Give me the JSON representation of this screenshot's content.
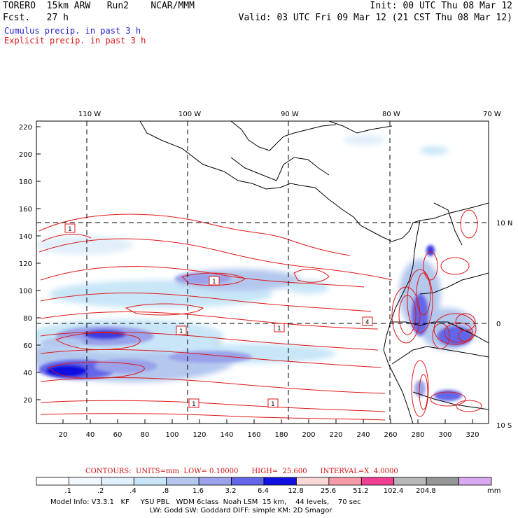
{
  "header": {
    "model": "TORERO  15km ARW   Run2    NCAR/MMM",
    "fcst": "Fcst.   27 h",
    "init": "Init: 00 UTC Thu 08 Mar 12",
    "valid": "Valid: 03 UTC Fri 09 Mar 12 (21 CST Thu 08 Mar 12)",
    "cumulus": "Cumulus precip. in past 3 h",
    "explicit": "Explicit precip. in past 3 h"
  },
  "axes": {
    "lon_labels": [
      "110 W",
      "100 W",
      "90 W",
      "80 W",
      "70 W"
    ],
    "lat_labels": [
      "10 N",
      "0",
      "10 S"
    ],
    "y_ticks": [
      "220",
      "200",
      "180",
      "160",
      "140",
      "120",
      "100",
      "80",
      "60",
      "40",
      "20"
    ],
    "x_ticks": [
      "20",
      "40",
      "60",
      "80",
      "100",
      "120",
      "140",
      "160",
      "180",
      "200",
      "220",
      "240",
      "260",
      "280",
      "300",
      "320"
    ]
  },
  "contour_labels": [
    "1",
    "1",
    "1",
    "1",
    "4",
    "1",
    "1"
  ],
  "contours_info": "CONTOURS:  UNITS=mm  LOW= 0.10000      HIGH=  25.600      INTERVAL=X  4.0000",
  "legend": {
    "labels": [
      ".1",
      ".2",
      ".4",
      ".8",
      "1.6",
      "3.2",
      "6.4",
      "12.8",
      "25.6",
      "51.2",
      "102.4",
      "204.8"
    ],
    "unit": "mm",
    "colors": [
      "#ffffff",
      "#f2f8ff",
      "#e2f0fb",
      "#c8e6f8",
      "#b4c8ee",
      "#9aa2ea",
      "#6466e8",
      "#1010e0",
      "#fbd8d8",
      "#f59aa8",
      "#f03e92",
      "#b8b8b8",
      "#969696",
      "#d8a8f0"
    ]
  },
  "model_info": {
    "line1": "Model Info: V3.3.1   KF     YSU PBL   WDM 6class  Noah LSM  15 km,    44 levels,    70 sec",
    "line2": "LW: Godd SW: Goddard DIFF: simple KM: 2D Smagor"
  }
}
